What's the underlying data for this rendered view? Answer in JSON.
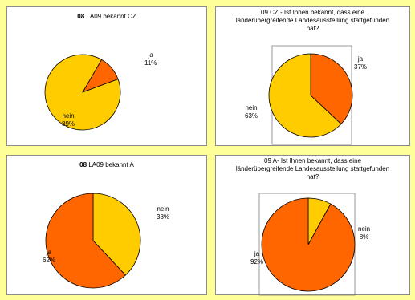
{
  "colors": {
    "background": "#FFFF99",
    "ja": "#FF6600",
    "nein": "#FFCC00"
  },
  "chart_data": [
    {
      "type": "pie",
      "title_bold": "08",
      "title": "LA09 bekannt CZ",
      "categories": [
        "ja",
        "nein"
      ],
      "values": [
        11,
        89
      ],
      "labels": [
        {
          "name": "ja",
          "pct": "11%"
        },
        {
          "name": "nein",
          "pct": "89%"
        }
      ]
    },
    {
      "type": "pie",
      "title_line1": "09 CZ - Ist Ihnen bekannt, dass eine",
      "title_line2": "länderübergreifende Landesausstellung stattgefunden",
      "title_line3": "hat?",
      "categories": [
        "ja",
        "nein"
      ],
      "values": [
        37,
        63
      ],
      "labels": [
        {
          "name": "ja",
          "pct": "37%"
        },
        {
          "name": "nein",
          "pct": "63%"
        }
      ]
    },
    {
      "type": "pie",
      "title_bold": "08",
      "title": "LA09 bekannt A",
      "categories": [
        "nein",
        "ja"
      ],
      "values": [
        38,
        62
      ],
      "labels": [
        {
          "name": "nein",
          "pct": "38%"
        },
        {
          "name": "ja",
          "pct": "62%"
        }
      ]
    },
    {
      "type": "pie",
      "title_line1": "09 A- Ist Ihnen bekannt, dass eine",
      "title_line2": "länderübergreifende Landesausstellung stattgefunden",
      "title_line3": "hat?",
      "categories": [
        "nein",
        "ja"
      ],
      "values": [
        8,
        92
      ],
      "labels": [
        {
          "name": "nein",
          "pct": "8%"
        },
        {
          "name": "ja",
          "pct": "92%"
        }
      ]
    }
  ]
}
